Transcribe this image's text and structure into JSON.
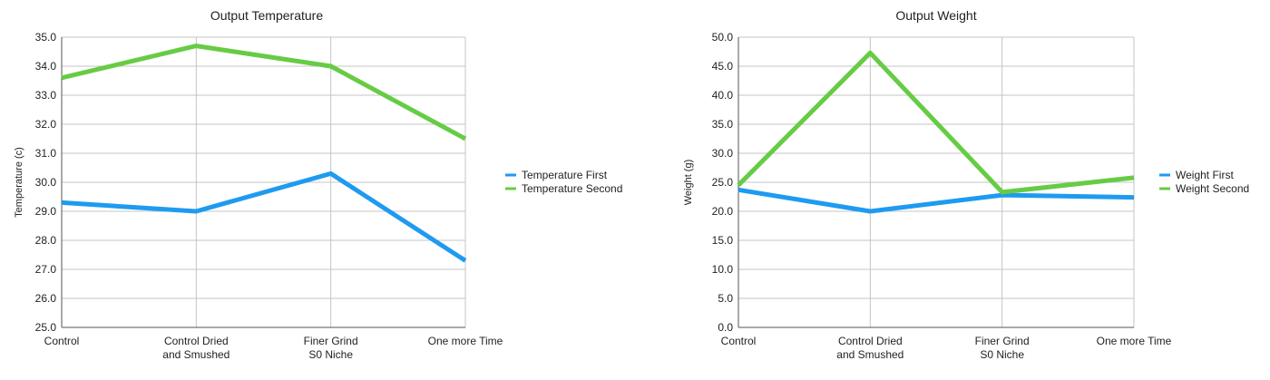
{
  "chart_data": [
    {
      "type": "line",
      "title": "Output Temperature",
      "xlabel": "",
      "ylabel": "Temperature (c)",
      "categories": [
        [
          "Control"
        ],
        [
          "Control Dried",
          "and Smushed"
        ],
        [
          "Finer Grind",
          "S0 Niche"
        ],
        [
          "One more Time"
        ]
      ],
      "ylim": [
        25,
        35
      ],
      "yticks": [
        "25.0",
        "26.0",
        "27.0",
        "28.0",
        "29.0",
        "30.0",
        "31.0",
        "32.0",
        "33.0",
        "34.0",
        "35.0"
      ],
      "grid": true,
      "legend": "right",
      "series": [
        {
          "name": "Temperature First",
          "color": "#1e9bf0",
          "values": [
            29.3,
            29.0,
            30.3,
            27.3
          ]
        },
        {
          "name": "Temperature Second",
          "color": "#66cc44",
          "values": [
            33.6,
            34.7,
            34.0,
            31.5
          ]
        }
      ]
    },
    {
      "type": "line",
      "title": "Output Weight",
      "xlabel": "",
      "ylabel": "Weight (g)",
      "categories": [
        [
          "Control"
        ],
        [
          "Control Dried",
          "and Smushed"
        ],
        [
          "Finer Grind",
          "S0 Niche"
        ],
        [
          "One more Time"
        ]
      ],
      "ylim": [
        0,
        50
      ],
      "yticks": [
        "0.0",
        "5.0",
        "10.0",
        "15.0",
        "20.0",
        "25.0",
        "30.0",
        "35.0",
        "40.0",
        "45.0",
        "50.0"
      ],
      "grid": true,
      "legend": "right",
      "series": [
        {
          "name": "Weight First",
          "color": "#1e9bf0",
          "values": [
            23.7,
            20.0,
            22.8,
            22.4
          ]
        },
        {
          "name": "Weight Second",
          "color": "#66cc44",
          "values": [
            24.5,
            47.3,
            23.3,
            25.8
          ]
        }
      ]
    }
  ]
}
